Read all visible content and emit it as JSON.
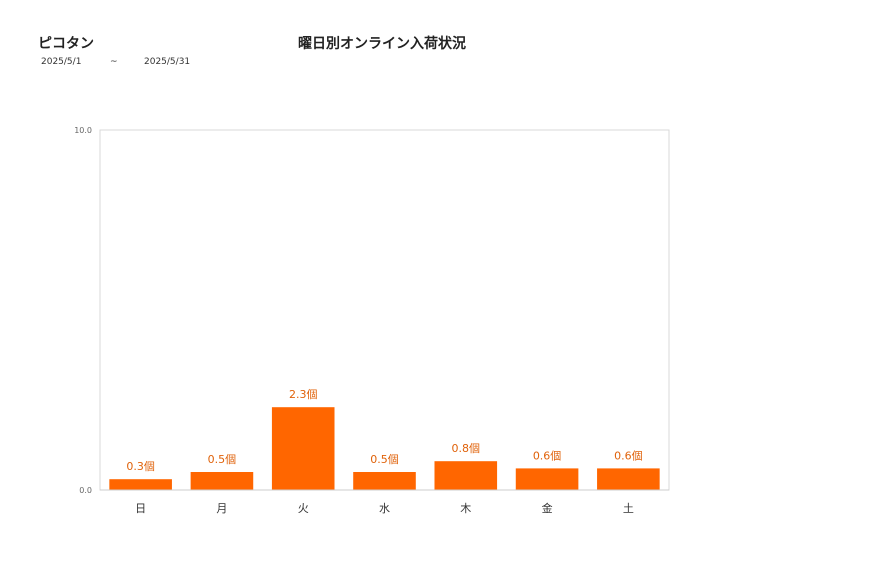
{
  "header": {
    "brand": "ピコタン",
    "title": "曜日別オンライン入荷状況",
    "date_start": "2025/5/1",
    "date_separator": "~",
    "date_end": "2025/5/31"
  },
  "chart_data": {
    "type": "bar",
    "title": "曜日別オンライン入荷状況",
    "categories": [
      "日",
      "月",
      "火",
      "水",
      "木",
      "金",
      "土"
    ],
    "values": [
      0.3,
      0.5,
      2.3,
      0.5,
      0.8,
      0.6,
      0.6
    ],
    "data_labels": [
      "0.3個",
      "0.5個",
      "2.3個",
      "0.5個",
      "0.8個",
      "0.6個",
      "0.6個"
    ],
    "ylim": [
      0,
      10
    ],
    "y_ticks": [
      "0.0",
      "10.0"
    ],
    "xlabel": "",
    "ylabel": "",
    "grid": false,
    "legend": "none",
    "bar_color": "#ff6600",
    "label_color": "#e0620a"
  }
}
